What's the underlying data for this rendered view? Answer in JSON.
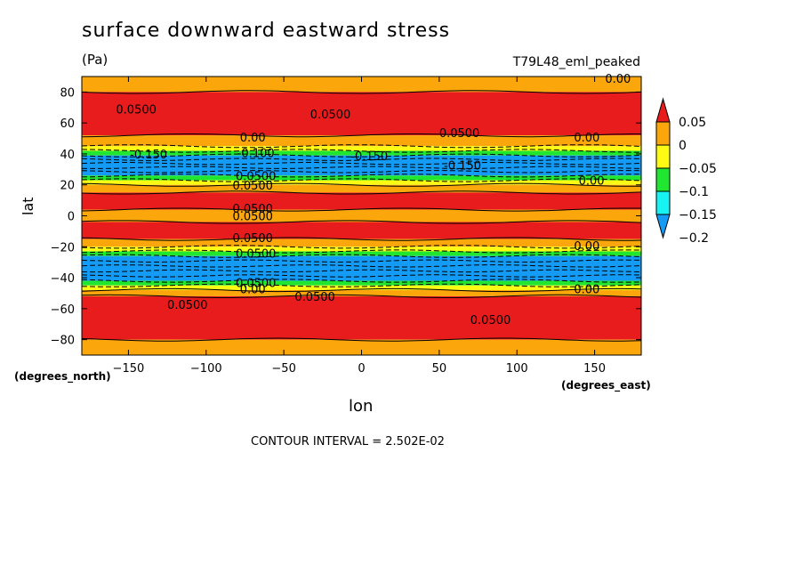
{
  "chart_data": {
    "type": "heatmap",
    "title": "surface downward eastward stress",
    "units": "(Pa)",
    "run_name": "T79L48_eml_peaked",
    "xlabel": "lon",
    "ylabel": "lat",
    "x_units": "(degrees_east)",
    "y_units": "(degrees_north)",
    "xlim": [
      -180,
      180
    ],
    "ylim": [
      -90,
      90
    ],
    "x_ticks": [
      -150,
      -100,
      -50,
      0,
      50,
      100,
      150
    ],
    "x_tick_labels": [
      "−150",
      "−100",
      "−50",
      "0",
      "50",
      "100",
      "150"
    ],
    "y_ticks": [
      80,
      60,
      40,
      20,
      0,
      -20,
      -40,
      -60,
      -80
    ],
    "y_tick_labels": [
      "80",
      "60",
      "40",
      "20",
      "0",
      "−20",
      "−40",
      "−60",
      "−80"
    ],
    "contour_interval_text": "CONTOUR INTERVAL = 2.502E-02",
    "colorbar": {
      "levels": [
        0.05,
        0,
        -0.05,
        -0.1,
        -0.15,
        -0.2
      ],
      "labels": [
        "0.05",
        "0",
        "−0.05",
        "−0.1",
        "−0.15",
        "−0.2"
      ],
      "colors": [
        "#e81c1c",
        "#fba60b",
        "#fdfb14",
        "#20e62f",
        "#17f2f2",
        "#139bf6"
      ]
    },
    "zonal_bands": [
      {
        "lat": [
          80,
          90
        ],
        "value": 0.02
      },
      {
        "lat": [
          52,
          80
        ],
        "value": 0.06
      },
      {
        "lat": [
          45,
          52
        ],
        "value": 0.02
      },
      {
        "lat": [
          42,
          45
        ],
        "value": -0.03
      },
      {
        "lat": [
          39,
          42
        ],
        "value": -0.08
      },
      {
        "lat": [
          26,
          39
        ],
        "value": -0.16
      },
      {
        "lat": [
          23,
          26
        ],
        "value": -0.08
      },
      {
        "lat": [
          20,
          23
        ],
        "value": -0.03
      },
      {
        "lat": [
          15,
          20
        ],
        "value": 0.02
      },
      {
        "lat": [
          4,
          15
        ],
        "value": 0.06
      },
      {
        "lat": [
          -4,
          4
        ],
        "value": 0.02
      },
      {
        "lat": [
          -15,
          -4
        ],
        "value": 0.06
      },
      {
        "lat": [
          -20,
          -15
        ],
        "value": 0.02
      },
      {
        "lat": [
          -23,
          -20
        ],
        "value": -0.03
      },
      {
        "lat": [
          -26,
          -23
        ],
        "value": -0.08
      },
      {
        "lat": [
          -42,
          -26
        ],
        "value": -0.16
      },
      {
        "lat": [
          -45,
          -42
        ],
        "value": -0.08
      },
      {
        "lat": [
          -48,
          -45
        ],
        "value": -0.03
      },
      {
        "lat": [
          -52,
          -48
        ],
        "value": 0.02
      },
      {
        "lat": [
          -80,
          -52
        ],
        "value": 0.06
      },
      {
        "lat": [
          -90,
          -80
        ],
        "value": 0.02
      }
    ],
    "contour_labels": [
      {
        "text": "0.0500",
        "lon": -145,
        "lat": 66
      },
      {
        "text": "0.0500",
        "lon": -20,
        "lat": 63
      },
      {
        "text": "0.0500",
        "lon": 63,
        "lat": 51
      },
      {
        "text": "0.00",
        "lon": 145,
        "lat": 48
      },
      {
        "text": "0.00",
        "lon": 165,
        "lat": 86
      },
      {
        "text": "0.00",
        "lon": -70,
        "lat": 48
      },
      {
        "text": "-0.150",
        "lon": -137,
        "lat": 37
      },
      {
        "text": "-0.100",
        "lon": -68,
        "lat": 38
      },
      {
        "text": "-0.150",
        "lon": 5,
        "lat": 36
      },
      {
        "text": "-0.150",
        "lon": 65,
        "lat": 30
      },
      {
        "text": "0.0500",
        "lon": -68,
        "lat": 23
      },
      {
        "text": "0.0500",
        "lon": -70,
        "lat": 17
      },
      {
        "text": "0.00",
        "lon": 148,
        "lat": 20
      },
      {
        "text": "0.0500",
        "lon": -70,
        "lat": 2
      },
      {
        "text": "0.0500",
        "lon": -70,
        "lat": -3
      },
      {
        "text": "0.0500",
        "lon": -70,
        "lat": -17
      },
      {
        "text": "0.00",
        "lon": 145,
        "lat": -22
      },
      {
        "text": "0.0500",
        "lon": -68,
        "lat": -27
      },
      {
        "text": "0.0500",
        "lon": -68,
        "lat": -46
      },
      {
        "text": "0.00",
        "lon": -70,
        "lat": -50
      },
      {
        "text": "0.00",
        "lon": 145,
        "lat": -50
      },
      {
        "text": "0.0500",
        "lon": -112,
        "lat": -60
      },
      {
        "text": "0.0500",
        "lon": -30,
        "lat": -55
      },
      {
        "text": "0.0500",
        "lon": 83,
        "lat": -70
      }
    ]
  }
}
